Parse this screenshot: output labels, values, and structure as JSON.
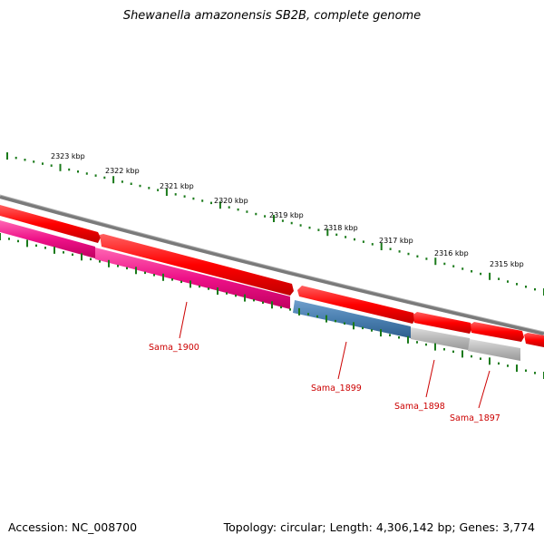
{
  "title": "Shewanella amazonensis SB2B, complete genome",
  "footer": {
    "accession": "Accession: NC_008700",
    "summary": "Topology: circular; Length: 4,306,142 bp; Genes: 3,774"
  },
  "ruler": {
    "labels": [
      "2323 kbp",
      "2322 kbp",
      "2321 kbp",
      "2320 kbp",
      "2319 kbp",
      "2318 kbp",
      "2317 kbp",
      "2316 kbp",
      "2315 kbp"
    ]
  },
  "genes": [
    {
      "label": "Sama_1900",
      "color": "#e8157f"
    },
    {
      "label": "Sama_1899",
      "color": "#4a7fb0"
    },
    {
      "label": "Sama_1898",
      "color": "#b8b8b8"
    },
    {
      "label": "Sama_1897",
      "color": "#b8b8b8"
    }
  ],
  "colors": {
    "cds": "#ff0000",
    "backbone": "#7a7a7a",
    "ticks": "#1a7a1a",
    "label": "#cc0000"
  }
}
